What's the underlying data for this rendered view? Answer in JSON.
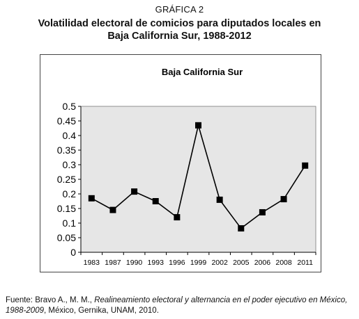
{
  "figure": {
    "label": "GRÁFICA 2",
    "title_line1": "Volatilidad electoral de comicios para diputados locales en",
    "title_line2": "Baja California Sur, 1988-2012"
  },
  "chart_data": {
    "type": "line",
    "title": "Baja California Sur",
    "categories": [
      "1983",
      "1987",
      "1990",
      "1993",
      "1996",
      "1999",
      "2002",
      "2005",
      "2006",
      "2008",
      "2011"
    ],
    "series": [
      {
        "values": [
          0.185,
          0.145,
          0.208,
          0.175,
          0.12,
          0.435,
          0.18,
          0.082,
          0.137,
          0.182,
          0.297
        ]
      }
    ],
    "y_ticks": [
      "0",
      "0.05",
      "0.1",
      "0.15",
      "0.2",
      "0.25",
      "0.3",
      "0.35",
      "0.4",
      "0.45",
      "0.5"
    ],
    "ylim": [
      0,
      0.5
    ],
    "xlabel": "",
    "ylabel": "",
    "grid": false,
    "legend": "none",
    "line_color": "#000000",
    "marker": "square",
    "plot_background": "#e6e6e6"
  },
  "source": {
    "prefix": "Fuente: Bravo A., M. M., ",
    "italic": "Realineamiento electoral y alternancia en el poder ejecutivo en México, 1988-2009",
    "suffix": ", México, Gernika, UNAM, 2010."
  }
}
